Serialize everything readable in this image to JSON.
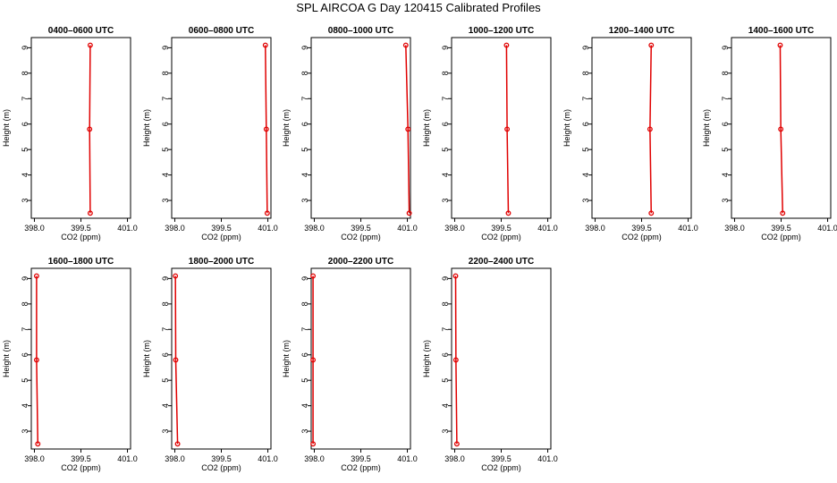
{
  "title": "SPL AIRCOA G  Day 120415  Calibrated Profiles",
  "chart_data": {
    "type": "line",
    "xlabel": "CO2 (ppm)",
    "ylabel": "Height (m)",
    "xlim": [
      397.9,
      401.1
    ],
    "ylim": [
      2.3,
      9.4
    ],
    "x_ticks": [
      "398.0",
      "399.5",
      "401.0"
    ],
    "y_ticks": [
      "3",
      "4",
      "5",
      "6",
      "7",
      "8",
      "9"
    ],
    "heights": [
      9.1,
      5.8,
      2.5
    ],
    "colors": {
      "line": "#e00000",
      "frame": "#000000"
    },
    "panels": [
      {
        "title": "0400–0600 UTC",
        "values": [
          399.8,
          399.78,
          399.8
        ]
      },
      {
        "title": "0600–0800 UTC",
        "values": [
          400.92,
          400.95,
          400.98
        ]
      },
      {
        "title": "0800–1000 UTC",
        "values": [
          400.95,
          401.02,
          401.06
        ]
      },
      {
        "title": "1000–1200 UTC",
        "values": [
          399.67,
          399.69,
          399.73
        ]
      },
      {
        "title": "1200–1400 UTC",
        "values": [
          399.81,
          399.77,
          399.81
        ]
      },
      {
        "title": "1400–1600 UTC",
        "values": [
          399.47,
          399.49,
          399.55
        ]
      },
      {
        "title": "1600–1800 UTC",
        "values": [
          398.07,
          398.07,
          398.11
        ]
      },
      {
        "title": "1800–2000 UTC",
        "values": [
          398.02,
          398.03,
          398.09
        ]
      },
      {
        "title": "2000–2200 UTC",
        "values": [
          397.96,
          397.96,
          397.96
        ]
      },
      {
        "title": "2200–2400 UTC",
        "values": [
          398.03,
          398.04,
          398.07
        ]
      }
    ]
  }
}
